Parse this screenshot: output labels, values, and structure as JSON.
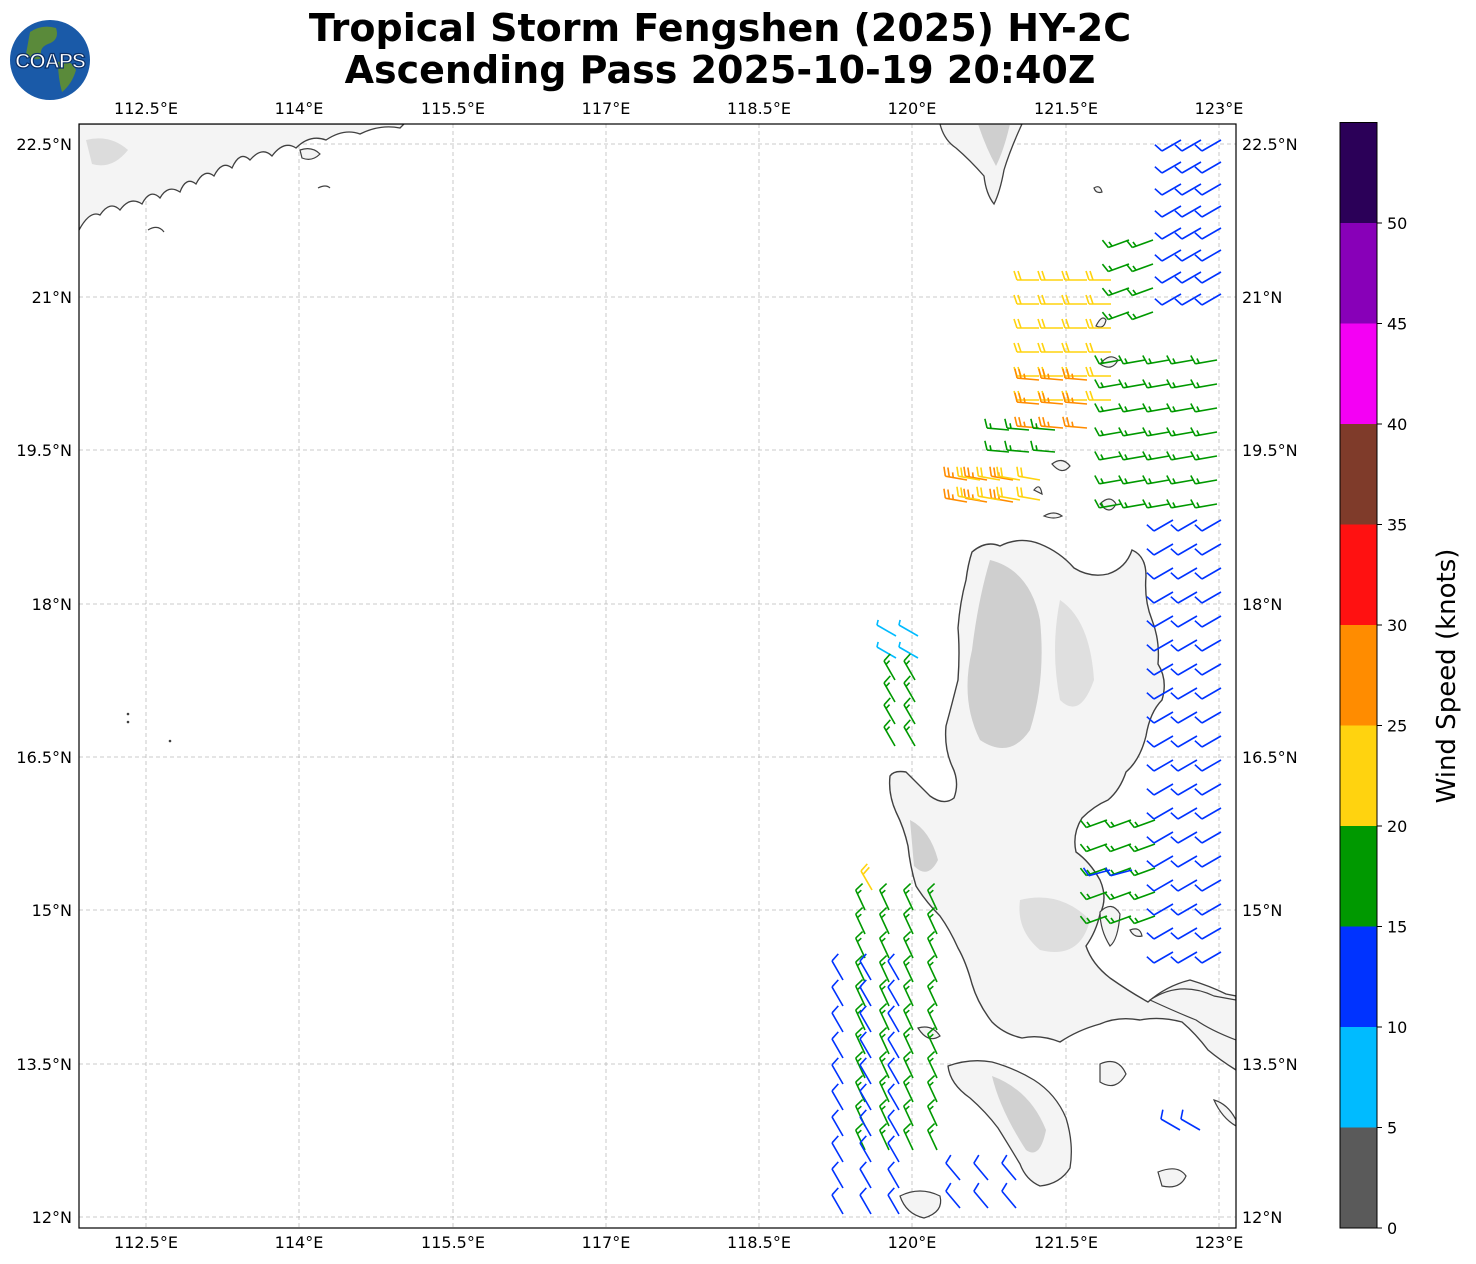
{
  "title": {
    "line1": "Tropical Storm Fengshen (2025) HY-2C",
    "line2": "Ascending Pass 2025-10-19 20:40Z"
  },
  "logo": {
    "text": "COAPS",
    "ocean_color": "#1a5aa8",
    "land_color": "#5a8a3a"
  },
  "axes": {
    "x_ticks": [
      "112.5°E",
      "114°E",
      "115.5°E",
      "117°E",
      "118.5°E",
      "120°E",
      "121.5°E",
      "123°E"
    ],
    "y_ticks": [
      "22.5°N",
      "21°N",
      "19.5°N",
      "18°N",
      "16.5°N",
      "15°N",
      "13.5°N",
      "12°N"
    ]
  },
  "colorbar": {
    "label": "Wind Speed (knots)",
    "tick_labels": [
      "0",
      "5",
      "10",
      "15",
      "20",
      "25",
      "30",
      "35",
      "40",
      "45",
      "50"
    ],
    "bins": [
      {
        "from": 0,
        "to": 5,
        "color": "#5a5a5a"
      },
      {
        "from": 5,
        "to": 10,
        "color": "#00bbff"
      },
      {
        "from": 10,
        "to": 15,
        "color": "#0033ff"
      },
      {
        "from": 15,
        "to": 20,
        "color": "#009900"
      },
      {
        "from": 20,
        "to": 25,
        "color": "#ffd30f"
      },
      {
        "from": 25,
        "to": 30,
        "color": "#ff8c00"
      },
      {
        "from": 30,
        "to": 35,
        "color": "#ff1111"
      },
      {
        "from": 35,
        "to": 40,
        "color": "#7f3b2a"
      },
      {
        "from": 40,
        "to": 45,
        "color": "#f400f4"
      },
      {
        "from": 45,
        "to": 50,
        "color": "#8800b8"
      },
      {
        "from": 50,
        "to": 55,
        "color": "#2b0058"
      }
    ]
  },
  "map_colors": {
    "coast": "#404040",
    "land": "#f4f4f4",
    "relief": "#bdbdbd",
    "grid": "#bbbbbb"
  },
  "wind_barbs": {
    "units": "knots",
    "groups": [
      {
        "speed": 14,
        "color": "#0033ff",
        "region": "east edge north 22.5N-21N"
      },
      {
        "speed": 17,
        "color": "#009900",
        "region": "northeast 21.8N-20.3N"
      },
      {
        "speed": 22,
        "color": "#ffd30f",
        "region": "north of Luzon 21N-19N"
      },
      {
        "speed": 27,
        "color": "#ff8c00",
        "region": "north of Luzon 20.2N-19N"
      },
      {
        "speed": 13,
        "color": "#0033ff",
        "region": "east of Luzon 19N-14.5N"
      },
      {
        "speed": 17,
        "color": "#009900",
        "region": "east of Luzon 15.8N-14.7N"
      },
      {
        "speed": 8,
        "color": "#00bbff",
        "region": "west of Luzon 17.5N"
      },
      {
        "speed": 17,
        "color": "#009900",
        "region": "west of Luzon 17N-12.5N"
      },
      {
        "speed": 12,
        "color": "#0033ff",
        "region": "southwest 14.5N-12N"
      },
      {
        "speed": 22,
        "color": "#ffd30f",
        "region": "west of Luzon 15.2N"
      }
    ]
  }
}
